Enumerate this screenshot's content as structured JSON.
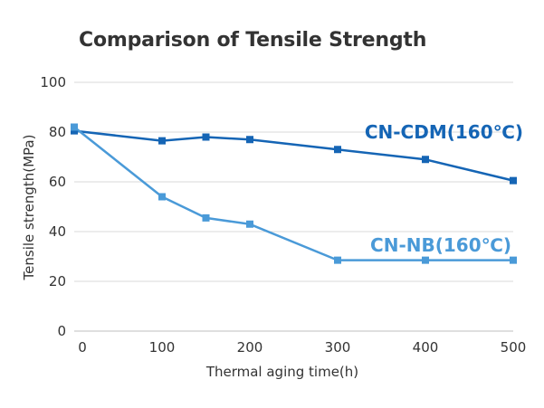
{
  "chart_data": {
    "type": "line",
    "title": "Comparison of Tensile Strength",
    "xlabel": "Thermal aging time(h)",
    "ylabel": "Tensile strength(MPa)",
    "xlim": [
      0,
      500
    ],
    "ylim": [
      0,
      100
    ],
    "x_ticks": [
      0,
      100,
      200,
      300,
      400,
      500
    ],
    "y_ticks": [
      0,
      20,
      40,
      60,
      80,
      100
    ],
    "grid": "horizontal",
    "series": [
      {
        "name": "CN-CDM(160℃)",
        "color": "#1565b5",
        "x": [
          0,
          100,
          150,
          200,
          300,
          400,
          500
        ],
        "values": [
          80.5,
          76.5,
          78,
          77,
          73,
          69,
          60.5
        ]
      },
      {
        "name": "CN-NB(160℃)",
        "color": "#4a9ad8",
        "x": [
          0,
          100,
          150,
          200,
          300,
          400,
          500
        ],
        "values": [
          82,
          54,
          45.5,
          43,
          28.5,
          28.5,
          28.5
        ]
      }
    ]
  }
}
